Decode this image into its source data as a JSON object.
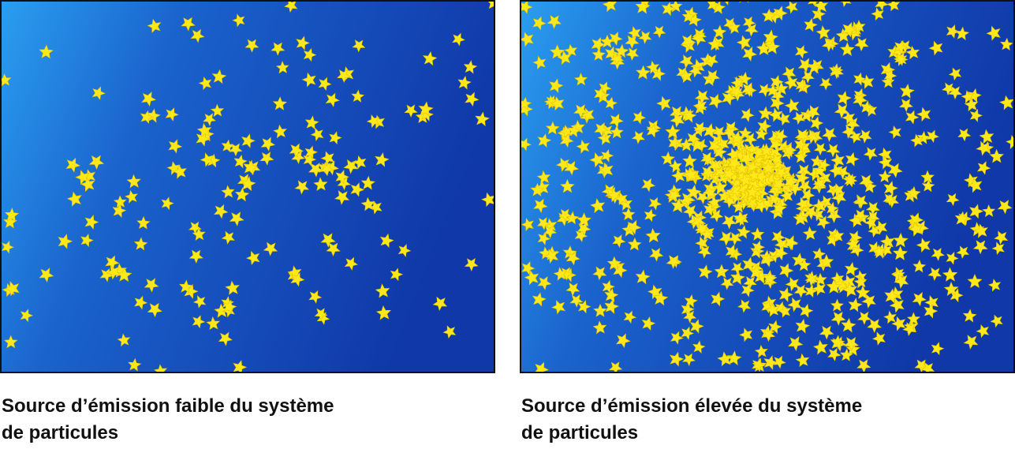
{
  "figures": [
    {
      "caption": [
        "Source d’émission faible du système",
        "de particules"
      ]
    },
    {
      "caption": [
        "Source d’émission élevée du système",
        "de particules"
      ]
    }
  ]
}
